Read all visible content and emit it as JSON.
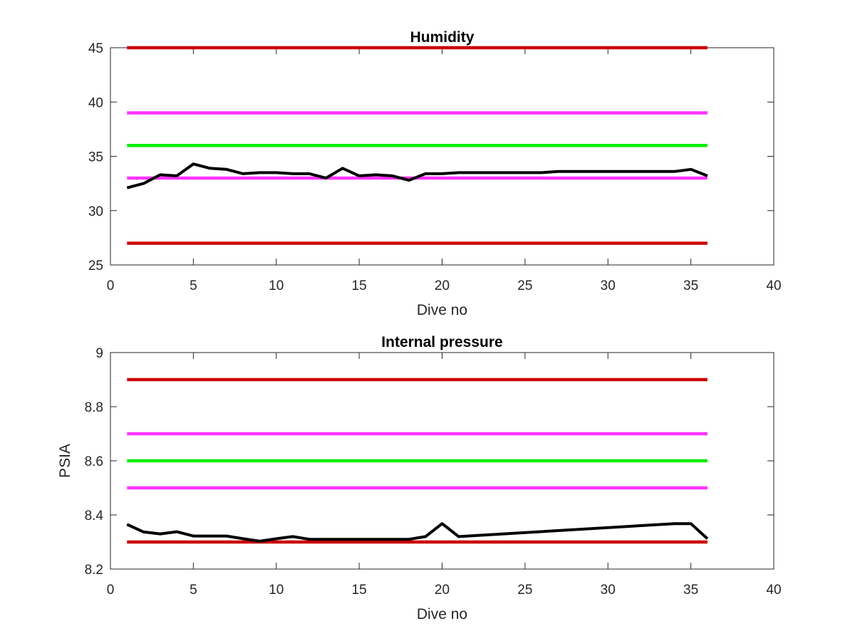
{
  "chart_data": [
    {
      "type": "line",
      "title": "Humidity",
      "xlabel": "Dive no",
      "ylabel": "",
      "xlim": [
        0,
        40
      ],
      "ylim": [
        25,
        45
      ],
      "xticks": [
        "0",
        "5",
        "10",
        "15",
        "20",
        "25",
        "30",
        "35",
        "40"
      ],
      "yticks": [
        "25",
        "30",
        "35",
        "40",
        "45"
      ],
      "grid": false,
      "series": [
        {
          "color": "#cc0000",
          "x": [
            1,
            36
          ],
          "y": [
            45,
            45
          ]
        },
        {
          "color": "#ff33ff",
          "x": [
            1,
            36
          ],
          "y": [
            39,
            39
          ]
        },
        {
          "color": "#00ee00",
          "x": [
            1,
            36
          ],
          "y": [
            36,
            36
          ]
        },
        {
          "color": "#ff33ff",
          "x": [
            1,
            36
          ],
          "y": [
            33,
            33
          ]
        },
        {
          "color": "#cc0000",
          "x": [
            1,
            36
          ],
          "y": [
            27,
            27
          ]
        },
        {
          "color": "#000000",
          "x": [
            1,
            2,
            3,
            4,
            5,
            6,
            7,
            8,
            9,
            10,
            11,
            12,
            13,
            14,
            15,
            16,
            17,
            18,
            19,
            20,
            21,
            22,
            23,
            24,
            25,
            26,
            27,
            28,
            29,
            30,
            31,
            32,
            33,
            34,
            35,
            36
          ],
          "y": [
            32.1,
            32.5,
            33.3,
            33.2,
            34.3,
            33.9,
            33.8,
            33.4,
            33.5,
            33.5,
            33.4,
            33.4,
            33.0,
            33.9,
            33.2,
            33.3,
            33.2,
            32.8,
            33.4,
            33.4,
            33.5,
            33.5,
            33.5,
            33.5,
            33.5,
            33.5,
            33.6,
            33.6,
            33.6,
            33.6,
            33.6,
            33.6,
            33.6,
            33.6,
            33.8,
            33.2
          ]
        }
      ]
    },
    {
      "type": "line",
      "title": "Internal pressure",
      "xlabel": "Dive no",
      "ylabel": "PSIA",
      "xlim": [
        0,
        40
      ],
      "ylim": [
        8.2,
        9
      ],
      "xticks": [
        "0",
        "5",
        "10",
        "15",
        "20",
        "25",
        "30",
        "35",
        "40"
      ],
      "yticks": [
        "8.2",
        "8.4",
        "8.6",
        "8.8",
        "9"
      ],
      "grid": false,
      "series": [
        {
          "color": "#cc0000",
          "x": [
            1,
            36
          ],
          "y": [
            8.9,
            8.9
          ]
        },
        {
          "color": "#ff33ff",
          "x": [
            1,
            36
          ],
          "y": [
            8.7,
            8.7
          ]
        },
        {
          "color": "#00ee00",
          "x": [
            1,
            36
          ],
          "y": [
            8.6,
            8.6
          ]
        },
        {
          "color": "#ff33ff",
          "x": [
            1,
            36
          ],
          "y": [
            8.5,
            8.5
          ]
        },
        {
          "color": "#cc0000",
          "x": [
            1,
            36
          ],
          "y": [
            8.3,
            8.3
          ]
        },
        {
          "color": "#000000",
          "x": [
            1,
            2,
            3,
            4,
            5,
            6,
            7,
            8,
            9,
            10,
            11,
            12,
            13,
            14,
            15,
            16,
            17,
            18,
            19,
            20,
            21,
            34,
            35,
            36
          ],
          "y": [
            8.365,
            8.337,
            8.33,
            8.338,
            8.322,
            8.322,
            8.322,
            8.312,
            8.303,
            8.312,
            8.32,
            8.31,
            8.31,
            8.31,
            8.31,
            8.31,
            8.31,
            8.31,
            8.32,
            8.368,
            8.32,
            8.368,
            8.368,
            8.312
          ]
        }
      ]
    }
  ]
}
